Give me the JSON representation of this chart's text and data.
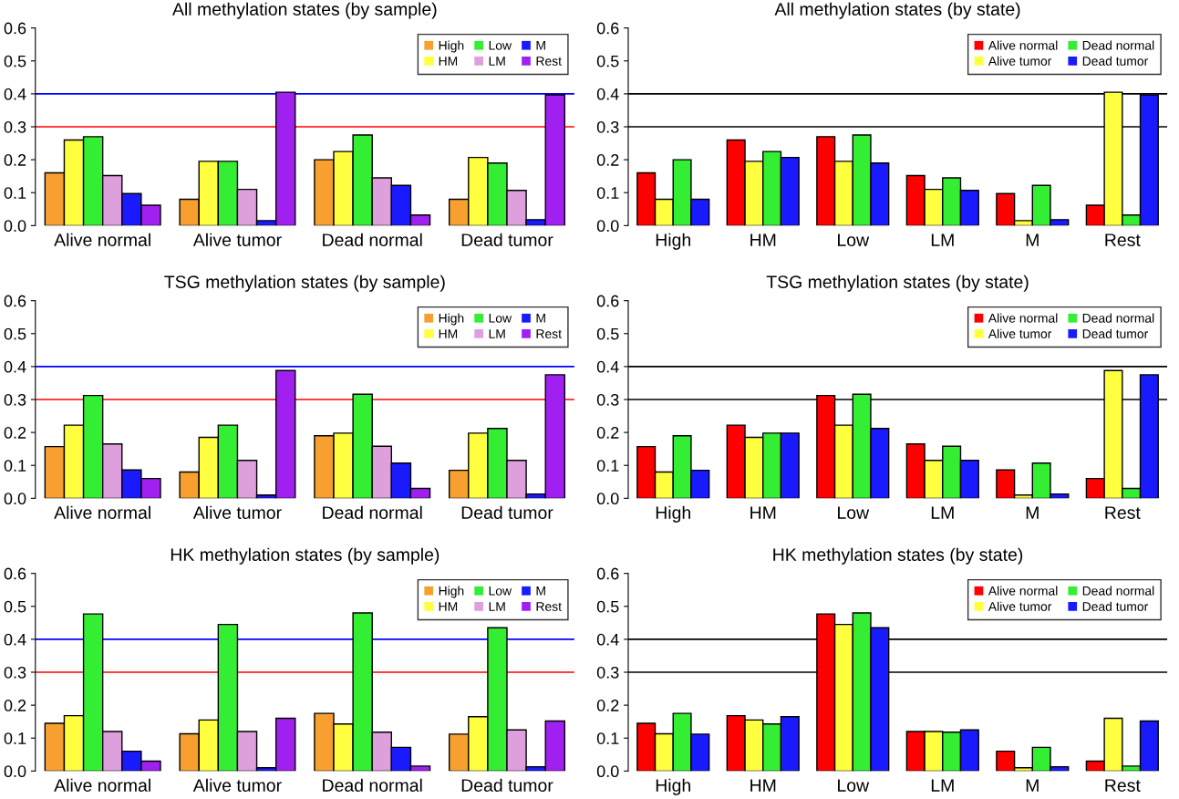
{
  "chart_data": [
    {
      "type": "bar",
      "title": "All methylation states (by sample)",
      "categories": [
        "Alive normal",
        "Alive tumor",
        "Dead normal",
        "Dead tumor"
      ],
      "ylim": [
        0,
        0.6
      ],
      "yticks": [
        {
          "value": 0,
          "label": "0.0"
        },
        {
          "value": 0.1,
          "label": "0.1"
        },
        {
          "value": 0.2,
          "label": "0.2"
        },
        {
          "value": 0.3,
          "label": "0.3"
        },
        {
          "value": 0.4,
          "label": "0.4"
        },
        {
          "value": 0.5,
          "label": "0.5"
        },
        {
          "value": 0.6,
          "label": "0.6"
        }
      ],
      "legend": "top right",
      "grid": false,
      "series": [
        {
          "name": "High",
          "color": "#f7a030",
          "values": [
            0.16,
            0.08,
            0.2,
            0.08
          ]
        },
        {
          "name": "HM",
          "color": "#ffff40",
          "values": [
            0.26,
            0.195,
            0.225,
            0.207
          ]
        },
        {
          "name": "Low",
          "color": "#33ee33",
          "values": [
            0.27,
            0.195,
            0.275,
            0.19
          ]
        },
        {
          "name": "LM",
          "color": "#dda0dd",
          "values": [
            0.152,
            0.11,
            0.145,
            0.107
          ]
        },
        {
          "name": "M",
          "color": "#1a1aff",
          "values": [
            0.097,
            0.015,
            0.122,
            0.018
          ]
        },
        {
          "name": "Rest",
          "color": "#a020f0",
          "values": [
            0.062,
            0.405,
            0.032,
            0.397
          ]
        }
      ],
      "ref_lines": [
        {
          "axis": "y",
          "value": 0.4,
          "color": "#0000ff"
        },
        {
          "axis": "y",
          "value": 0.3,
          "color": "#ff0000"
        }
      ]
    },
    {
      "type": "bar",
      "title": "All methylation states (by state)",
      "categories": [
        "High",
        "HM",
        "Low",
        "LM",
        "M",
        "Rest"
      ],
      "ylim": [
        0,
        0.6
      ],
      "yticks": [
        {
          "value": 0,
          "label": "0.0"
        },
        {
          "value": 0.1,
          "label": "0.1"
        },
        {
          "value": 0.2,
          "label": "0.2"
        },
        {
          "value": 0.3,
          "label": "0.3"
        },
        {
          "value": 0.4,
          "label": "0.4"
        },
        {
          "value": 0.5,
          "label": "0.5"
        },
        {
          "value": 0.6,
          "label": "0.6"
        }
      ],
      "legend": "top right",
      "grid": false,
      "series": [
        {
          "name": "Alive normal",
          "color": "#ff0000",
          "values": [
            0.16,
            0.26,
            0.27,
            0.152,
            0.097,
            0.062
          ]
        },
        {
          "name": "Alive tumor",
          "color": "#ffff40",
          "values": [
            0.08,
            0.195,
            0.195,
            0.11,
            0.015,
            0.405
          ]
        },
        {
          "name": "Dead normal",
          "color": "#33ee33",
          "values": [
            0.2,
            0.225,
            0.275,
            0.145,
            0.122,
            0.032
          ]
        },
        {
          "name": "Dead tumor",
          "color": "#1a1aff",
          "values": [
            0.08,
            0.207,
            0.19,
            0.107,
            0.018,
            0.397
          ]
        }
      ],
      "ref_lines": [
        {
          "axis": "y",
          "value": 0.4,
          "color": "#000000"
        },
        {
          "axis": "y",
          "value": 0.3,
          "color": "#000000"
        }
      ]
    },
    {
      "type": "bar",
      "title": "TSG methylation states (by sample)",
      "categories": [
        "Alive normal",
        "Alive tumor",
        "Dead normal",
        "Dead tumor"
      ],
      "ylim": [
        0,
        0.6
      ],
      "yticks": [
        {
          "value": 0,
          "label": "0.0"
        },
        {
          "value": 0.1,
          "label": "0.1"
        },
        {
          "value": 0.2,
          "label": "0.2"
        },
        {
          "value": 0.3,
          "label": "0.3"
        },
        {
          "value": 0.4,
          "label": "0.4"
        },
        {
          "value": 0.5,
          "label": "0.5"
        },
        {
          "value": 0.6,
          "label": "0.6"
        }
      ],
      "legend": "top right",
      "grid": false,
      "series": [
        {
          "name": "High",
          "color": "#f7a030",
          "values": [
            0.157,
            0.08,
            0.19,
            0.085
          ]
        },
        {
          "name": "HM",
          "color": "#ffff40",
          "values": [
            0.222,
            0.185,
            0.198,
            0.198
          ]
        },
        {
          "name": "Low",
          "color": "#33ee33",
          "values": [
            0.312,
            0.222,
            0.316,
            0.212
          ]
        },
        {
          "name": "LM",
          "color": "#dda0dd",
          "values": [
            0.165,
            0.115,
            0.158,
            0.115
          ]
        },
        {
          "name": "M",
          "color": "#1a1aff",
          "values": [
            0.086,
            0.01,
            0.107,
            0.013
          ]
        },
        {
          "name": "Rest",
          "color": "#a020f0",
          "values": [
            0.06,
            0.388,
            0.03,
            0.375
          ]
        }
      ],
      "ref_lines": [
        {
          "axis": "y",
          "value": 0.4,
          "color": "#0000ff"
        },
        {
          "axis": "y",
          "value": 0.3,
          "color": "#ff0000"
        }
      ]
    },
    {
      "type": "bar",
      "title": "TSG methylation states (by state)",
      "categories": [
        "High",
        "HM",
        "Low",
        "LM",
        "M",
        "Rest"
      ],
      "ylim": [
        0,
        0.6
      ],
      "yticks": [
        {
          "value": 0,
          "label": "0.0"
        },
        {
          "value": 0.1,
          "label": "0.1"
        },
        {
          "value": 0.2,
          "label": "0.2"
        },
        {
          "value": 0.3,
          "label": "0.3"
        },
        {
          "value": 0.4,
          "label": "0.4"
        },
        {
          "value": 0.5,
          "label": "0.5"
        },
        {
          "value": 0.6,
          "label": "0.6"
        }
      ],
      "legend": "top right",
      "grid": false,
      "series": [
        {
          "name": "Alive normal",
          "color": "#ff0000",
          "values": [
            0.157,
            0.222,
            0.312,
            0.165,
            0.086,
            0.06
          ]
        },
        {
          "name": "Alive tumor",
          "color": "#ffff40",
          "values": [
            0.08,
            0.185,
            0.222,
            0.115,
            0.01,
            0.388
          ]
        },
        {
          "name": "Dead normal",
          "color": "#33ee33",
          "values": [
            0.19,
            0.198,
            0.316,
            0.158,
            0.107,
            0.03
          ]
        },
        {
          "name": "Dead tumor",
          "color": "#1a1aff",
          "values": [
            0.085,
            0.198,
            0.212,
            0.115,
            0.013,
            0.375
          ]
        }
      ],
      "ref_lines": [
        {
          "axis": "y",
          "value": 0.4,
          "color": "#000000"
        },
        {
          "axis": "y",
          "value": 0.3,
          "color": "#000000"
        }
      ]
    },
    {
      "type": "bar",
      "title": "HK methylation states (by sample)",
      "categories": [
        "Alive normal",
        "Alive tumor",
        "Dead normal",
        "Dead tumor"
      ],
      "ylim": [
        0,
        0.6
      ],
      "yticks": [
        {
          "value": 0,
          "label": "0.0"
        },
        {
          "value": 0.1,
          "label": "0.1"
        },
        {
          "value": 0.2,
          "label": "0.2"
        },
        {
          "value": 0.3,
          "label": "0.3"
        },
        {
          "value": 0.4,
          "label": "0.4"
        },
        {
          "value": 0.5,
          "label": "0.5"
        },
        {
          "value": 0.6,
          "label": "0.6"
        }
      ],
      "legend": "top right",
      "grid": false,
      "series": [
        {
          "name": "High",
          "color": "#f7a030",
          "values": [
            0.145,
            0.113,
            0.175,
            0.112
          ]
        },
        {
          "name": "HM",
          "color": "#ffff40",
          "values": [
            0.168,
            0.155,
            0.143,
            0.165
          ]
        },
        {
          "name": "Low",
          "color": "#33ee33",
          "values": [
            0.477,
            0.445,
            0.48,
            0.435
          ]
        },
        {
          "name": "LM",
          "color": "#dda0dd",
          "values": [
            0.12,
            0.12,
            0.118,
            0.125
          ]
        },
        {
          "name": "M",
          "color": "#1a1aff",
          "values": [
            0.06,
            0.01,
            0.072,
            0.013
          ]
        },
        {
          "name": "Rest",
          "color": "#a020f0",
          "values": [
            0.03,
            0.16,
            0.015,
            0.152
          ]
        }
      ],
      "ref_lines": [
        {
          "axis": "y",
          "value": 0.4,
          "color": "#0000ff"
        },
        {
          "axis": "y",
          "value": 0.3,
          "color": "#ff0000"
        }
      ]
    },
    {
      "type": "bar",
      "title": "HK methylation states (by state)",
      "categories": [
        "High",
        "HM",
        "Low",
        "LM",
        "M",
        "Rest"
      ],
      "ylim": [
        0,
        0.6
      ],
      "yticks": [
        {
          "value": 0,
          "label": "0.0"
        },
        {
          "value": 0.1,
          "label": "0.1"
        },
        {
          "value": 0.2,
          "label": "0.2"
        },
        {
          "value": 0.3,
          "label": "0.3"
        },
        {
          "value": 0.4,
          "label": "0.4"
        },
        {
          "value": 0.5,
          "label": "0.5"
        },
        {
          "value": 0.6,
          "label": "0.6"
        }
      ],
      "legend": "top right",
      "grid": false,
      "series": [
        {
          "name": "Alive normal",
          "color": "#ff0000",
          "values": [
            0.145,
            0.168,
            0.477,
            0.12,
            0.06,
            0.03
          ]
        },
        {
          "name": "Alive tumor",
          "color": "#ffff40",
          "values": [
            0.113,
            0.155,
            0.445,
            0.12,
            0.01,
            0.16
          ]
        },
        {
          "name": "Dead normal",
          "color": "#33ee33",
          "values": [
            0.175,
            0.143,
            0.48,
            0.118,
            0.072,
            0.015
          ]
        },
        {
          "name": "Dead tumor",
          "color": "#1a1aff",
          "values": [
            0.112,
            0.165,
            0.435,
            0.125,
            0.013,
            0.152
          ]
        }
      ],
      "ref_lines": [
        {
          "axis": "y",
          "value": 0.4,
          "color": "#000000"
        },
        {
          "axis": "y",
          "value": 0.3,
          "color": "#000000"
        }
      ]
    }
  ]
}
